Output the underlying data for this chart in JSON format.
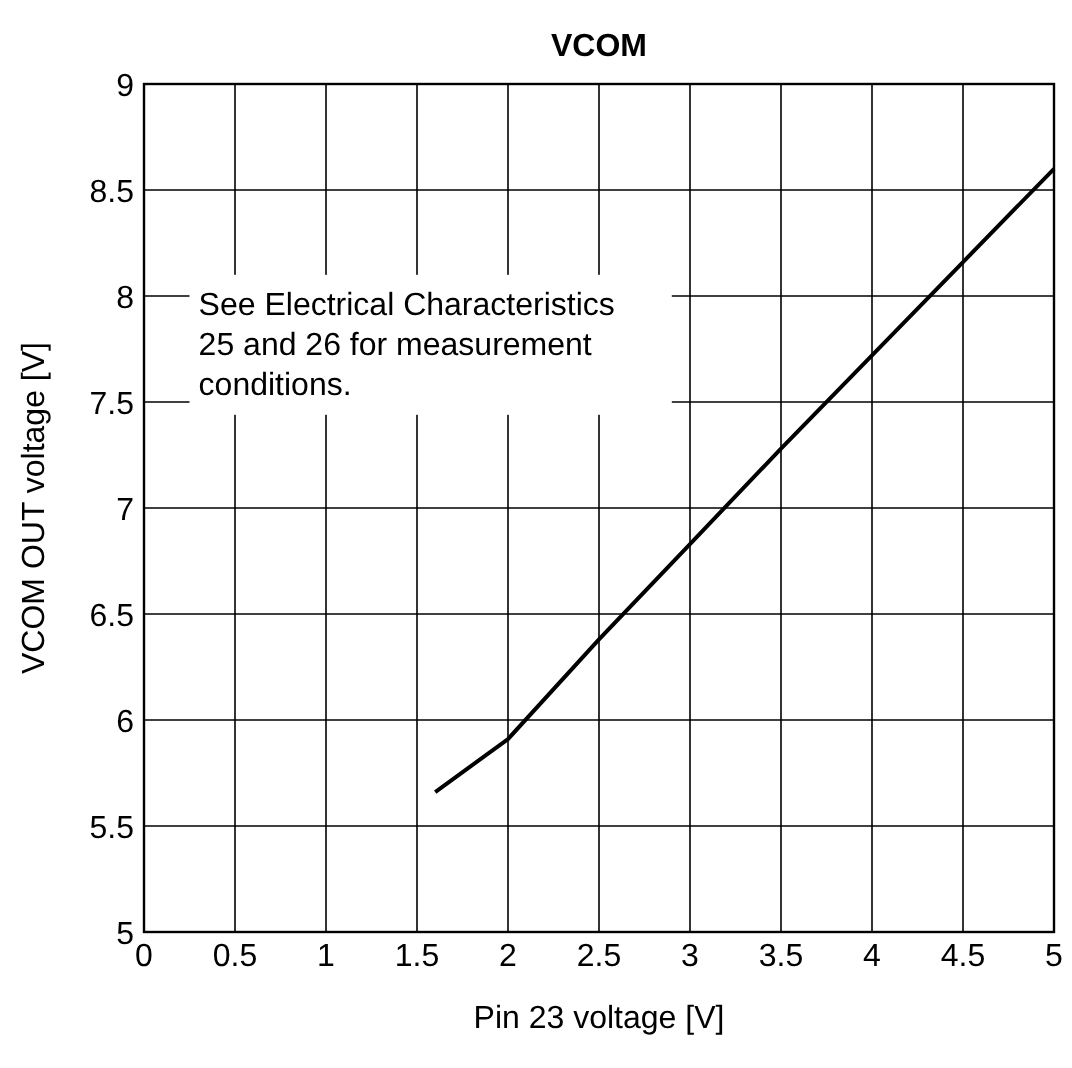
{
  "chart_data": {
    "type": "line",
    "title": "VCOM",
    "xlabel": "Pin 23 voltage [V]",
    "ylabel": "VCOM OUT voltage [V]",
    "series": [
      {
        "color": "#000000",
        "x": [
          1.6,
          2,
          2.5,
          3,
          3.5,
          4,
          4.5,
          5
        ],
        "values": [
          5.66,
          5.91,
          6.38,
          6.83,
          7.28,
          7.72,
          8.16,
          8.6
        ]
      }
    ],
    "xlim": [
      0,
      5
    ],
    "xticks": [
      0,
      0.5,
      1,
      1.5,
      2,
      2.5,
      3,
      3.5,
      4,
      4.5,
      5
    ],
    "ylim": [
      5,
      9
    ],
    "yticks": [
      5,
      5.5,
      6,
      6.5,
      7,
      7.5,
      8,
      8.5,
      9
    ],
    "grid": true,
    "marker": "none",
    "line_style": "solid",
    "annotations": [
      "See Electrical Characteristics 25 and 26 for measurement conditions."
    ]
  }
}
